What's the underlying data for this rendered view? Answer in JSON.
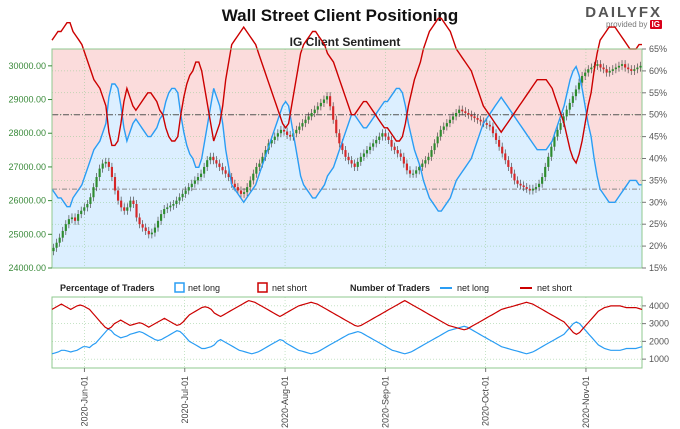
{
  "header": {
    "title": "Wall Street Client Positioning",
    "brand": "DAILYFX",
    "brand_sub": "provided by",
    "brand_badge": "IG"
  },
  "chart_data": [
    {
      "type": "line",
      "title": "IG Client Sentiment",
      "price_ticks": [
        "30000.00",
        "29000.00",
        "28000.00",
        "27000.00",
        "26000.00",
        "25000.00",
        "24000.00"
      ],
      "price_ylim": [
        24000,
        30500
      ],
      "pct_ticks": [
        "65%",
        "60%",
        "55%",
        "50%",
        "45%",
        "40%",
        "35%",
        "30%",
        "25%",
        "20%",
        "15%"
      ],
      "pct_ylim": [
        15,
        65
      ],
      "reference_lines_pct": [
        50,
        33
      ],
      "colors": {
        "net_long": "#2a9df4",
        "net_short": "#cc0000",
        "long_fill": "#dcefff",
        "short_fill": "#fbdcdc",
        "candle_up": "#2e8b2e",
        "candle_down": "#d62728"
      },
      "series": [
        {
          "name": "net long",
          "values": [
            33,
            32,
            31,
            31,
            30,
            29,
            29,
            31,
            32,
            33,
            34,
            36,
            38,
            40,
            42,
            43,
            44,
            46,
            48,
            54,
            57,
            57,
            56,
            52,
            47,
            44,
            46,
            48,
            49,
            48,
            47,
            46,
            45,
            45,
            46,
            47,
            49,
            50,
            53,
            55,
            56,
            56,
            55,
            50,
            46,
            43,
            41,
            40,
            38,
            38,
            40,
            44,
            48,
            52,
            56,
            54,
            52,
            48,
            42,
            38,
            34,
            33,
            32,
            31,
            30,
            31,
            32,
            33,
            34,
            36,
            38,
            40,
            42,
            44,
            46,
            48,
            50,
            52,
            53,
            52,
            48,
            44,
            40,
            36,
            34,
            33,
            32,
            31,
            31,
            32,
            33,
            34,
            36,
            37,
            38,
            40,
            42,
            44,
            46,
            48,
            50,
            50,
            49,
            48,
            47,
            47,
            48,
            49,
            50,
            51,
            52,
            53,
            53,
            54,
            55,
            56,
            56,
            55,
            52,
            48,
            45,
            42,
            40,
            38,
            35,
            33,
            31,
            30,
            29,
            28,
            28,
            29,
            30,
            31,
            33,
            35,
            36,
            37,
            38,
            39,
            40,
            42,
            44,
            46,
            48,
            49,
            50,
            51,
            52,
            53,
            54,
            53,
            52,
            51,
            50,
            49,
            48,
            47,
            46,
            45,
            44,
            43,
            42,
            42,
            42,
            42,
            43,
            44,
            46,
            48,
            50,
            52,
            55,
            58,
            60,
            61,
            59,
            56,
            52,
            48,
            45,
            40,
            36,
            33,
            32,
            31,
            30,
            30,
            30,
            31,
            32,
            33,
            34,
            35,
            35,
            35,
            34,
            34
          ]
        },
        {
          "name": "net short",
          "values": [
            67,
            68,
            69,
            69,
            70,
            71,
            71,
            69,
            68,
            67,
            66,
            64,
            62,
            60,
            58,
            57,
            56,
            54,
            52,
            46,
            43,
            43,
            44,
            48,
            53,
            56,
            54,
            52,
            51,
            52,
            53,
            54,
            55,
            55,
            54,
            53,
            51,
            50,
            47,
            45,
            44,
            44,
            45,
            50,
            54,
            57,
            59,
            60,
            62,
            62,
            60,
            56,
            52,
            48,
            44,
            46,
            48,
            52,
            58,
            62,
            66,
            67,
            68,
            69,
            70,
            69,
            68,
            67,
            66,
            64,
            62,
            60,
            58,
            56,
            54,
            52,
            50,
            48,
            47,
            48,
            52,
            56,
            60,
            64,
            66,
            67,
            68,
            69,
            69,
            68,
            67,
            66,
            64,
            63,
            62,
            60,
            58,
            56,
            54,
            52,
            50,
            50,
            51,
            52,
            53,
            53,
            52,
            51,
            50,
            49,
            48,
            47,
            47,
            46,
            45,
            44,
            44,
            45,
            48,
            52,
            55,
            58,
            60,
            62,
            65,
            67,
            69,
            70,
            71,
            72,
            72,
            71,
            70,
            69,
            67,
            65,
            64,
            63,
            62,
            61,
            60,
            58,
            56,
            54,
            52,
            51,
            50,
            49,
            48,
            47,
            46,
            47,
            48,
            49,
            50,
            51,
            52,
            53,
            54,
            55,
            56,
            57,
            58,
            58,
            58,
            58,
            57,
            56,
            54,
            52,
            50,
            48,
            45,
            42,
            40,
            39,
            41,
            44,
            48,
            52,
            55,
            60,
            64,
            67,
            68,
            69,
            70,
            70,
            70,
            69,
            68,
            67,
            66,
            65,
            65,
            65,
            66,
            66
          ]
        }
      ],
      "price_close": [
        24600,
        24750,
        24900,
        25100,
        25300,
        25450,
        25500,
        25400,
        25600,
        25700,
        25800,
        25900,
        26100,
        26400,
        26700,
        26950,
        27100,
        27150,
        27000,
        26700,
        26300,
        26000,
        25800,
        25700,
        25800,
        26000,
        25900,
        25500,
        25300,
        25200,
        25100,
        25000,
        25050,
        25200,
        25400,
        25600,
        25750,
        25800,
        25850,
        25900,
        26000,
        26100,
        26200,
        26300,
        26400,
        26500,
        26600,
        26700,
        26800,
        27000,
        27200,
        27300,
        27200,
        27100,
        27000,
        26900,
        26800,
        26700,
        26500,
        26400,
        26300,
        26200,
        26250,
        26400,
        26600,
        26800,
        27000,
        27100,
        27300,
        27500,
        27700,
        27800,
        27900,
        28000,
        28100,
        28050,
        27950,
        27900,
        28000,
        28100,
        28200,
        28300,
        28400,
        28500,
        28600,
        28700,
        28800,
        28900,
        29000,
        29100,
        28800,
        28400,
        28000,
        27700,
        27500,
        27300,
        27200,
        27100,
        27000,
        27150,
        27300,
        27400,
        27500,
        27600,
        27700,
        27800,
        27900,
        28000,
        27900,
        27800,
        27600,
        27500,
        27400,
        27300,
        27100,
        26900,
        26800,
        26800,
        26900,
        27000,
        27100,
        27200,
        27300,
        27500,
        27700,
        27900,
        28100,
        28200,
        28300,
        28400,
        28500,
        28600,
        28700,
        28650,
        28600,
        28550,
        28500,
        28450,
        28400,
        28350,
        28300,
        28250,
        28200,
        28000,
        27800,
        27600,
        27400,
        27200,
        27000,
        26800,
        26600,
        26500,
        26450,
        26400,
        26350,
        26300,
        26350,
        26400,
        26500,
        26700,
        27000,
        27300,
        27600,
        27900,
        28100,
        28300,
        28500,
        28700,
        28900,
        29100,
        29300,
        29500,
        29700,
        29800,
        29900,
        29950,
        30000,
        30050,
        29950,
        29900,
        29800,
        29850,
        29900,
        29950,
        30000,
        30050,
        29950,
        29900,
        29850,
        29900,
        29950,
        30000
      ]
    },
    {
      "type": "line",
      "legend": {
        "pct_heading": "Percentage of Traders",
        "num_heading": "Number of Traders",
        "net_long": "net long",
        "net_short": "net short"
      },
      "ticks": [
        "4000",
        "3000",
        "2000",
        "1000"
      ],
      "ylim": [
        500,
        4500
      ],
      "x_ticks": [
        "2020-Jun-01",
        "2020-Jul-01",
        "2020-Aug-01",
        "2020-Sep-01",
        "2020-Oct-01",
        "2020-Nov-01"
      ],
      "series": [
        {
          "name": "net long",
          "values": [
            1300,
            1350,
            1400,
            1500,
            1500,
            1450,
            1400,
            1450,
            1500,
            1600,
            1700,
            1700,
            1650,
            1800,
            1900,
            2100,
            2300,
            2500,
            2700,
            2600,
            2400,
            2300,
            2200,
            2250,
            2300,
            2400,
            2450,
            2500,
            2550,
            2500,
            2400,
            2300,
            2200,
            2100,
            2050,
            2100,
            2200,
            2300,
            2400,
            2500,
            2600,
            2550,
            2400,
            2200,
            2000,
            1900,
            1800,
            1700,
            1600,
            1600,
            1650,
            1700,
            1800,
            2000,
            2100,
            2000,
            1900,
            1800,
            1700,
            1600,
            1500,
            1450,
            1400,
            1350,
            1300,
            1350,
            1400,
            1500,
            1600,
            1700,
            1800,
            1900,
            2000,
            2100,
            2050,
            1900,
            1800,
            1700,
            1600,
            1500,
            1450,
            1400,
            1350,
            1300,
            1350,
            1400,
            1500,
            1600,
            1700,
            1800,
            1900,
            2000,
            2100,
            2200,
            2300,
            2400,
            2450,
            2500,
            2550,
            2500,
            2400,
            2300,
            2200,
            2100,
            2000,
            1900,
            1800,
            1700,
            1600,
            1500,
            1450,
            1400,
            1350,
            1300,
            1350,
            1400,
            1500,
            1600,
            1700,
            1800,
            1900,
            2000,
            2100,
            2200,
            2300,
            2400,
            2500,
            2600,
            2650,
            2700,
            2750,
            2800,
            2850,
            2800,
            2700,
            2600,
            2500,
            2400,
            2300,
            2200,
            2100,
            2000,
            1900,
            1800,
            1700,
            1650,
            1600,
            1550,
            1500,
            1450,
            1400,
            1350,
            1300,
            1350,
            1400,
            1500,
            1600,
            1700,
            1800,
            1900,
            2000,
            2100,
            2200,
            2300,
            2400,
            2600,
            2800,
            3000,
            3100,
            3000,
            2800,
            2600,
            2400,
            2200,
            2000,
            1800,
            1700,
            1600,
            1550,
            1500,
            1500,
            1500,
            1500,
            1550,
            1600,
            1600,
            1600,
            1600,
            1650,
            1700
          ]
        },
        {
          "name": "net short",
          "values": [
            3800,
            3900,
            4000,
            4100,
            4000,
            3900,
            3800,
            3900,
            4000,
            4050,
            4000,
            3900,
            3800,
            3600,
            3400,
            3200,
            3000,
            2800,
            2700,
            2800,
            3000,
            3100,
            3200,
            3100,
            3000,
            2900,
            2950,
            3000,
            3050,
            3000,
            2900,
            2800,
            2900,
            3000,
            3100,
            3200,
            3300,
            3200,
            3100,
            3000,
            2900,
            2950,
            3100,
            3300,
            3500,
            3600,
            3700,
            3800,
            3900,
            3950,
            3900,
            3800,
            3600,
            3500,
            3400,
            3500,
            3600,
            3700,
            3800,
            3900,
            4000,
            4100,
            4200,
            4300,
            4250,
            4200,
            4100,
            4000,
            3900,
            3800,
            3700,
            3600,
            3500,
            3400,
            3500,
            3600,
            3700,
            3800,
            3900,
            4000,
            4050,
            4100,
            4150,
            4200,
            4150,
            4100,
            4000,
            3900,
            3800,
            3700,
            3600,
            3500,
            3400,
            3300,
            3200,
            3100,
            3000,
            2900,
            2850,
            2900,
            3000,
            3100,
            3200,
            3300,
            3400,
            3500,
            3600,
            3700,
            3800,
            3900,
            4000,
            4100,
            4200,
            4300,
            4200,
            4100,
            4000,
            3900,
            3800,
            3700,
            3600,
            3500,
            3400,
            3300,
            3200,
            3100,
            3000,
            2900,
            2850,
            2800,
            2750,
            2700,
            2650,
            2700,
            2800,
            2900,
            3000,
            3100,
            3200,
            3300,
            3400,
            3500,
            3600,
            3700,
            3800,
            3850,
            3900,
            3950,
            4000,
            4050,
            4100,
            4150,
            4200,
            4150,
            4100,
            4000,
            3900,
            3800,
            3700,
            3600,
            3500,
            3400,
            3300,
            3200,
            3100,
            2900,
            2700,
            2500,
            2400,
            2500,
            2700,
            2900,
            3100,
            3300,
            3500,
            3700,
            3800,
            3900,
            3950,
            4000,
            4000,
            4000,
            4000,
            3950,
            3900,
            3900,
            3900,
            3900,
            3850,
            3800
          ]
        }
      ]
    }
  ]
}
